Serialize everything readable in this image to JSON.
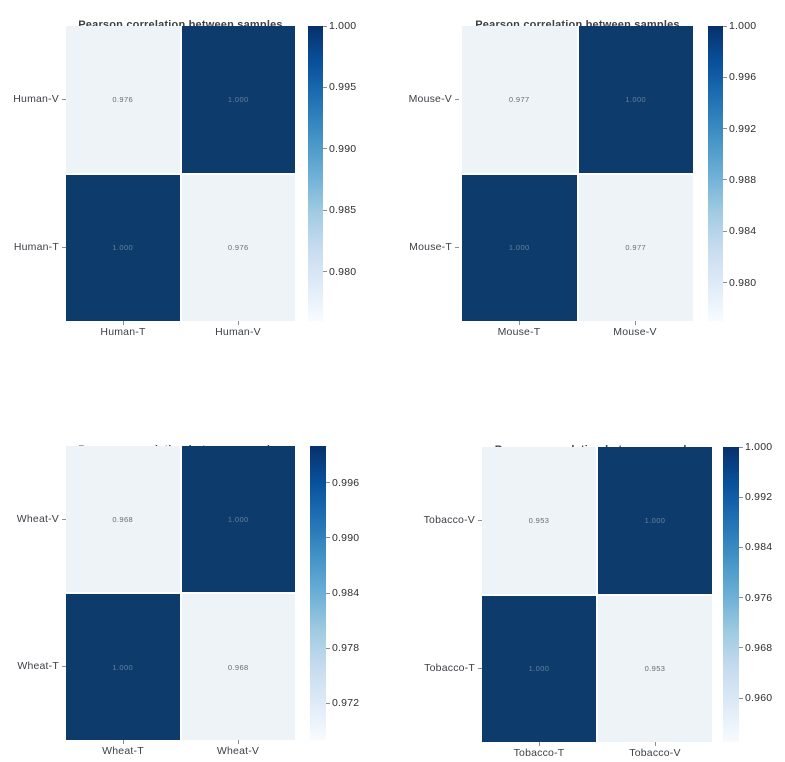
{
  "figure_title": "Pearson correlation between samples",
  "colors": {
    "background": "#ffffff",
    "dark_cell": "#0d3c6c",
    "light_cell": "#eef3f8",
    "annotation_on_dark": "#64809d",
    "annotation_on_light": "#676c73",
    "axis_text": "#3d4046",
    "colorbar_text": "#2b2d31",
    "tick_color": "#8a8f96",
    "colorbar_gradient_top_to_bottom": [
      "#08306b",
      "#08519c",
      "#2171b5",
      "#4292c6",
      "#6baed6",
      "#9ecae1",
      "#c6dbef",
      "#deebf7",
      "#f7fbff"
    ]
  },
  "chart_data": [
    {
      "type": "heatmap",
      "title": "Pearson correlation between samples",
      "rows": [
        "Human-V",
        "Human-T"
      ],
      "cols": [
        "Human-T",
        "Human-V"
      ],
      "values": [
        [
          0.976,
          1.0
        ],
        [
          1.0,
          0.976
        ]
      ],
      "annotations": [
        [
          "0.976",
          "1.000"
        ],
        [
          "1.000",
          "0.976"
        ]
      ],
      "colormap": "Blues",
      "annot": true,
      "colorbar": {
        "position": "right",
        "vmin": 0.976,
        "vmax": 1.0,
        "ticks": [
          1.0,
          0.995,
          0.99,
          0.985,
          0.98
        ],
        "tick_labels": [
          "1.000",
          "0.995",
          "0.990",
          "0.985",
          "0.980"
        ]
      }
    },
    {
      "type": "heatmap",
      "title": "Pearson correlation between samples",
      "rows": [
        "Mouse-V",
        "Mouse-T"
      ],
      "cols": [
        "Mouse-T",
        "Mouse-V"
      ],
      "values": [
        [
          0.977,
          1.0
        ],
        [
          1.0,
          0.977
        ]
      ],
      "annotations": [
        [
          "0.977",
          "1.000"
        ],
        [
          "1.000",
          "0.977"
        ]
      ],
      "colormap": "Blues",
      "annot": true,
      "colorbar": {
        "position": "right",
        "vmin": 0.977,
        "vmax": 1.0,
        "ticks": [
          1.0,
          0.996,
          0.992,
          0.988,
          0.984,
          0.98
        ],
        "tick_labels": [
          "1.000",
          "0.996",
          "0.992",
          "0.988",
          "0.984",
          "0.980"
        ]
      }
    },
    {
      "type": "heatmap",
      "title": "Pearson correlation between samples",
      "rows": [
        "Wheat-V",
        "Wheat-T"
      ],
      "cols": [
        "Wheat-T",
        "Wheat-V"
      ],
      "values": [
        [
          0.968,
          1.0
        ],
        [
          1.0,
          0.968
        ]
      ],
      "annotations": [
        [
          "0.968",
          "1.000"
        ],
        [
          "1.000",
          "0.968"
        ]
      ],
      "colormap": "Blues",
      "annot": true,
      "colorbar": {
        "position": "right",
        "vmin": 0.968,
        "vmax": 1.0,
        "ticks": [
          0.996,
          0.99,
          0.984,
          0.978,
          0.972
        ],
        "tick_labels": [
          "0.996",
          "0.990",
          "0.984",
          "0.978",
          "0.972"
        ]
      }
    },
    {
      "type": "heatmap",
      "title": "Pearson correlation between samples",
      "rows": [
        "Tobacco-V",
        "Tobacco-T"
      ],
      "cols": [
        "Tobacco-T",
        "Tobacco-V"
      ],
      "values": [
        [
          0.953,
          1.0
        ],
        [
          1.0,
          0.953
        ]
      ],
      "annotations": [
        [
          "0.953",
          "1.000"
        ],
        [
          "1.000",
          "0.953"
        ]
      ],
      "colormap": "Blues",
      "annot": true,
      "colorbar": {
        "position": "right",
        "vmin": 0.953,
        "vmax": 1.0,
        "ticks": [
          1.0,
          0.992,
          0.984,
          0.976,
          0.968,
          0.96
        ],
        "tick_labels": [
          "1.000",
          "0.992",
          "0.984",
          "0.976",
          "0.968",
          "0.960"
        ]
      }
    }
  ]
}
